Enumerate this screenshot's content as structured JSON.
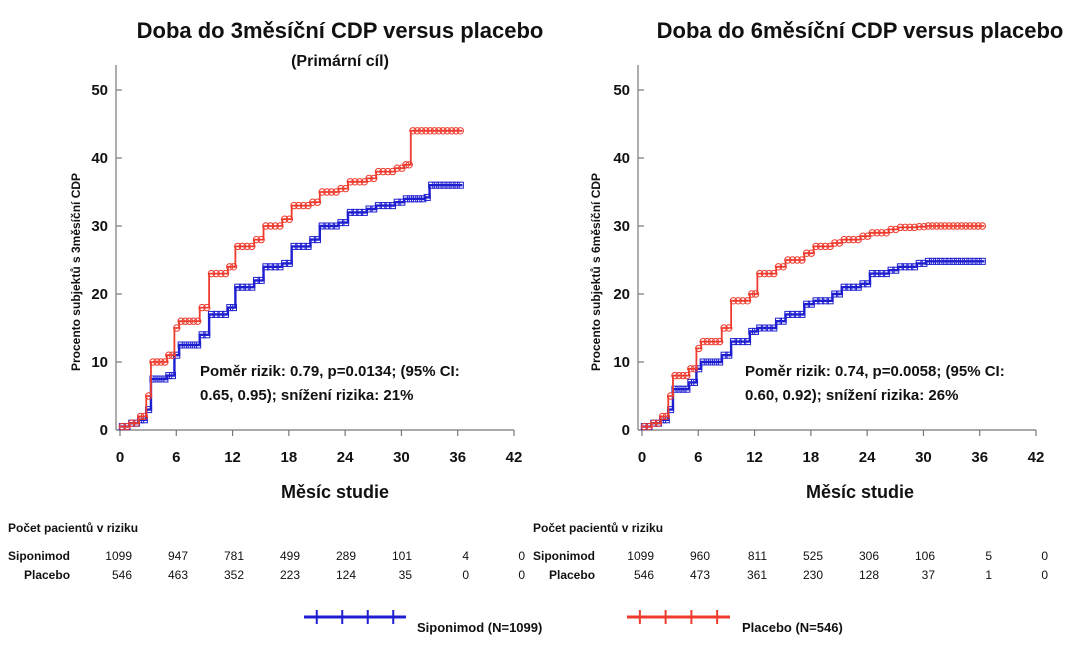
{
  "colors": {
    "siponimod": "#1f1fd0",
    "placebo": "#ee3b2e",
    "axis": "#777777"
  },
  "legend": {
    "siponimod": "Siponimod (N=1099)",
    "placebo": "Placebo (N=546)"
  },
  "chart_data": [
    {
      "type": "line",
      "title": "Doba do 3měsíční CDP versus placebo",
      "subtitle": "(Primární cíl)",
      "xlabel": "Měsíc studie",
      "ylabel": "Procento subjektů s 3měsíční CDP",
      "xlim": [
        0,
        42
      ],
      "ylim": [
        0,
        50
      ],
      "xticks": [
        "0",
        "6",
        "12",
        "18",
        "24",
        "30",
        "36",
        "42"
      ],
      "yticks": [
        "0",
        "10",
        "20",
        "30",
        "40",
        "50"
      ],
      "annotation": [
        "Poměr rizik: 0.79, p=0.0134; (95% CI:",
        "0.65, 0.95); snížení rizika: 21%"
      ],
      "series": [
        {
          "name": "Siponimod",
          "x": [
            0,
            1,
            2,
            2.8,
            3.3,
            5,
            5.8,
            6.3,
            8.5,
            9.5,
            11.5,
            12.3,
            14.3,
            15.3,
            17.3,
            18.3,
            20.3,
            21.3,
            23.3,
            24.3,
            26.3,
            27.3,
            29.3,
            30.3,
            32.5,
            33,
            36.5
          ],
          "y": [
            0.5,
            1,
            1.5,
            3,
            7.5,
            8,
            11,
            12.5,
            14,
            17,
            18,
            21,
            22,
            24,
            24.5,
            27,
            28,
            30,
            30.5,
            32,
            32.5,
            33,
            33.5,
            34,
            34.2,
            36,
            36
          ]
        },
        {
          "name": "Placebo",
          "x": [
            0,
            1,
            2,
            2.8,
            3.3,
            5,
            5.8,
            6.3,
            8.5,
            9.5,
            11.5,
            12.3,
            14.3,
            15.3,
            17.3,
            18.3,
            20.3,
            21.3,
            23.3,
            24.3,
            26.3,
            27.3,
            29.3,
            30.3,
            31,
            36.5
          ],
          "y": [
            0.5,
            1,
            2,
            5,
            10,
            11,
            15,
            16,
            18,
            23,
            24,
            27,
            28,
            30,
            31,
            33,
            33.5,
            35,
            35.5,
            36.5,
            37,
            38,
            38.5,
            39,
            44,
            44
          ]
        }
      ],
      "risk_table": {
        "header": "Počet pacientů v riziku",
        "rows": [
          {
            "label": "Siponimod",
            "values": [
              "1099",
              "947",
              "781",
              "499",
              "289",
              "101",
              "4",
              "0"
            ]
          },
          {
            "label": "Placebo",
            "values": [
              "546",
              "463",
              "352",
              "223",
              "124",
              "35",
              "0",
              "0"
            ]
          }
        ]
      }
    },
    {
      "type": "line",
      "title": "Doba do 6měsíční CDP versus placebo",
      "subtitle": "",
      "xlabel": "Měsíc studie",
      "ylabel": "Procento subjektů s 6měsíční CDP",
      "xlim": [
        0,
        42
      ],
      "ylim": [
        0,
        50
      ],
      "xticks": [
        "0",
        "6",
        "12",
        "18",
        "24",
        "30",
        "36",
        "42"
      ],
      "yticks": [
        "0",
        "10",
        "20",
        "30",
        "40",
        "50"
      ],
      "annotation": [
        "Poměr rizik: 0.74, p=0.0058; (95% CI:",
        "0.60, 0.92); snížení rizika: 26%"
      ],
      "series": [
        {
          "name": "Siponimod",
          "x": [
            0,
            1,
            2,
            2.8,
            3.3,
            5,
            5.8,
            6.3,
            8.5,
            9.5,
            11.5,
            12.3,
            14.3,
            15.3,
            17.3,
            18.3,
            20.3,
            21.3,
            23.3,
            24.3,
            26.3,
            27.3,
            29.3,
            30.3,
            36.5
          ],
          "y": [
            0.5,
            1,
            1.5,
            3,
            6,
            7,
            9,
            10,
            11,
            13,
            14.5,
            15,
            16,
            17,
            18.5,
            19,
            20,
            21,
            21.5,
            23,
            23.5,
            24,
            24.5,
            24.8,
            24.8
          ]
        },
        {
          "name": "Placebo",
          "x": [
            0,
            1,
            2,
            2.8,
            3.3,
            5,
            5.8,
            6.3,
            8.5,
            9.5,
            11.5,
            12.3,
            14.3,
            15.3,
            17.3,
            18.3,
            20.3,
            21.3,
            23.3,
            24.3,
            26.3,
            27.3,
            29.3,
            30.3,
            36.5
          ],
          "y": [
            0.5,
            1,
            2,
            5,
            8,
            9,
            12,
            13,
            15,
            19,
            20,
            23,
            24,
            25,
            26,
            27,
            27.5,
            28,
            28.5,
            29,
            29.5,
            29.8,
            29.9,
            30,
            30
          ]
        }
      ],
      "risk_table": {
        "header": "Počet pacientů v riziku",
        "rows": [
          {
            "label": "Siponimod",
            "values": [
              "1099",
              "960",
              "811",
              "525",
              "306",
              "106",
              "5",
              "0"
            ]
          },
          {
            "label": "Placebo",
            "values": [
              "546",
              "473",
              "361",
              "230",
              "128",
              "37",
              "1",
              "0"
            ]
          }
        ]
      }
    }
  ]
}
